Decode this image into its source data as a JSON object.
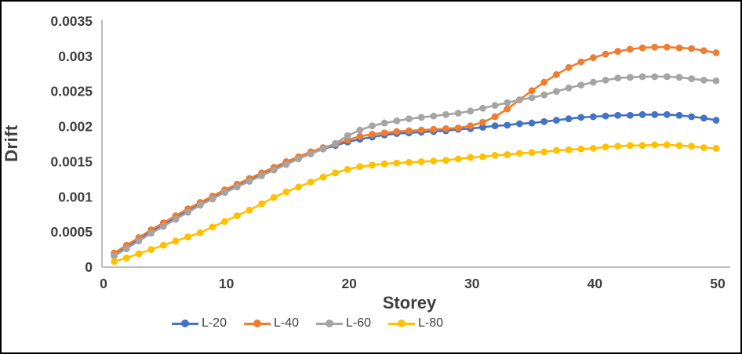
{
  "window": {
    "background": "#FFFFFF",
    "frame_border_color": "#000000"
  },
  "styles": {
    "axis_line_color": "#BFBFBF",
    "tick_text_color": "#3F3F3F",
    "axis_title_color": "#3F3F3F",
    "legend_text_color": "#404040"
  },
  "chart_data": {
    "type": "line",
    "title": "",
    "xlabel": "Storey",
    "ylabel": "Drift",
    "grid": false,
    "legend_position": "bottom-center",
    "marker": "circle",
    "xlim": [
      0,
      50
    ],
    "ylim": [
      0,
      0.0035
    ],
    "x_ticks": [
      0,
      10,
      20,
      30,
      40,
      50
    ],
    "x_tick_labels": [
      "0",
      "10",
      "20",
      "30",
      "40",
      "50"
    ],
    "y_ticks": [
      0,
      0.0005,
      0.001,
      0.0015,
      0.002,
      0.0025,
      0.003,
      0.0035
    ],
    "y_tick_labels": [
      "0",
      "0.0005",
      "0.001",
      "0.0015",
      "0.002",
      "0.0025",
      "0.003",
      "0.0035"
    ],
    "x": [
      1,
      2,
      3,
      4,
      5,
      6,
      7,
      8,
      9,
      10,
      11,
      12,
      13,
      14,
      15,
      16,
      17,
      18,
      19,
      20,
      21,
      22,
      23,
      24,
      25,
      26,
      27,
      28,
      29,
      30,
      31,
      32,
      33,
      34,
      35,
      36,
      37,
      38,
      39,
      40,
      41,
      42,
      43,
      44,
      45,
      46,
      47,
      48,
      49,
      50
    ],
    "series": [
      {
        "name": "L-20",
        "color": "#4472C4",
        "values": [
          0.00018,
          0.00029,
          0.0004,
          0.00051,
          0.00061,
          0.00071,
          0.00081,
          0.0009,
          0.00099,
          0.00108,
          0.00116,
          0.00124,
          0.00132,
          0.0014,
          0.00148,
          0.00155,
          0.00162,
          0.00168,
          0.00173,
          0.00178,
          0.00182,
          0.00185,
          0.00188,
          0.0019,
          0.00191,
          0.00192,
          0.00193,
          0.00194,
          0.00196,
          0.00197,
          0.00199,
          0.00201,
          0.00202,
          0.00204,
          0.00205,
          0.00207,
          0.00209,
          0.00211,
          0.00213,
          0.00214,
          0.00215,
          0.00216,
          0.00216,
          0.00217,
          0.00217,
          0.00217,
          0.00216,
          0.00214,
          0.00212,
          0.00209
        ]
      },
      {
        "name": "L-40",
        "color": "#ED7D31",
        "values": [
          0.0002,
          0.00031,
          0.00042,
          0.00053,
          0.00063,
          0.00073,
          0.00083,
          0.00092,
          0.00101,
          0.0011,
          0.00118,
          0.00126,
          0.00134,
          0.00142,
          0.0015,
          0.00157,
          0.00164,
          0.0017,
          0.00175,
          0.00181,
          0.00186,
          0.00189,
          0.00191,
          0.00193,
          0.00194,
          0.00195,
          0.00196,
          0.00197,
          0.00198,
          0.00201,
          0.00206,
          0.00214,
          0.00225,
          0.00238,
          0.00251,
          0.00263,
          0.00274,
          0.00284,
          0.00292,
          0.00298,
          0.00303,
          0.00307,
          0.0031,
          0.00312,
          0.00313,
          0.00313,
          0.00312,
          0.00311,
          0.00308,
          0.00305
        ]
      },
      {
        "name": "L-60",
        "color": "#A5A5A5",
        "values": [
          0.00016,
          0.00026,
          0.00037,
          0.00048,
          0.00058,
          0.00068,
          0.00078,
          0.00088,
          0.00097,
          0.00106,
          0.00114,
          0.00122,
          0.0013,
          0.00138,
          0.00146,
          0.00154,
          0.00161,
          0.00168,
          0.00176,
          0.00187,
          0.00195,
          0.00201,
          0.00205,
          0.00208,
          0.00211,
          0.00213,
          0.00215,
          0.00217,
          0.00219,
          0.00222,
          0.00226,
          0.0023,
          0.00234,
          0.00238,
          0.00241,
          0.00245,
          0.0025,
          0.00255,
          0.00259,
          0.00263,
          0.00266,
          0.00269,
          0.0027,
          0.00271,
          0.00271,
          0.00271,
          0.0027,
          0.00268,
          0.00266,
          0.00265
        ]
      },
      {
        "name": "L-80",
        "color": "#FFC000",
        "values": [
          8e-05,
          0.00013,
          0.00019,
          0.00025,
          0.00031,
          0.00037,
          0.00043,
          0.00049,
          0.00057,
          0.00065,
          0.00073,
          0.00081,
          0.0009,
          0.00099,
          0.00107,
          0.00114,
          0.00121,
          0.00128,
          0.00134,
          0.00139,
          0.00143,
          0.00145,
          0.00147,
          0.00148,
          0.00149,
          0.0015,
          0.00151,
          0.00152,
          0.00154,
          0.00156,
          0.00157,
          0.00159,
          0.0016,
          0.00162,
          0.00163,
          0.00164,
          0.00166,
          0.00167,
          0.00168,
          0.00169,
          0.00171,
          0.00172,
          0.00173,
          0.00173,
          0.00174,
          0.00174,
          0.00173,
          0.00172,
          0.0017,
          0.00169
        ]
      }
    ]
  }
}
